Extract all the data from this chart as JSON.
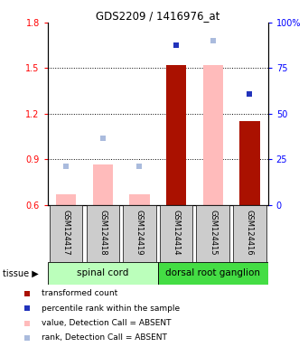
{
  "title": "GDS2209 / 1416976_at",
  "samples": [
    "GSM124417",
    "GSM124418",
    "GSM124419",
    "GSM124414",
    "GSM124415",
    "GSM124416"
  ],
  "red_bars": {
    "GSM124417": {
      "value": 0.67,
      "absent": true
    },
    "GSM124418": {
      "value": 0.865,
      "absent": true
    },
    "GSM124419": {
      "value": 0.67,
      "absent": true
    },
    "GSM124414": {
      "value": 1.52,
      "absent": false
    },
    "GSM124415": {
      "value": 1.52,
      "absent": true
    },
    "GSM124416": {
      "value": 1.15,
      "absent": false
    }
  },
  "blue_squares": {
    "GSM124417": {
      "value": 0.855,
      "absent": true
    },
    "GSM124418": {
      "value": 1.04,
      "absent": true
    },
    "GSM124419": {
      "value": 0.855,
      "absent": true
    },
    "GSM124414": {
      "value": 1.65,
      "absent": false
    },
    "GSM124415": {
      "value": 1.68,
      "absent": true
    },
    "GSM124416": {
      "value": 1.33,
      "absent": false
    }
  },
  "ylim_left": [
    0.6,
    1.8
  ],
  "ylim_right": [
    0,
    100
  ],
  "yticks_left": [
    0.6,
    0.9,
    1.2,
    1.5,
    1.8
  ],
  "yticks_right": [
    0,
    25,
    50,
    75,
    100
  ],
  "bar_width": 0.55,
  "absent_bar_color": "#ffbbbb",
  "present_bar_color": "#aa1100",
  "absent_square_color": "#aabbdd",
  "present_square_color": "#2233bb",
  "spinal_cord_color": "#bbffbb",
  "dorsal_color": "#44dd44",
  "label_box_color": "#cccccc",
  "legend_items": [
    {
      "color": "#aa1100",
      "label": "transformed count"
    },
    {
      "color": "#2233bb",
      "label": "percentile rank within the sample"
    },
    {
      "color": "#ffbbbb",
      "label": "value, Detection Call = ABSENT"
    },
    {
      "color": "#aabbdd",
      "label": "rank, Detection Call = ABSENT"
    }
  ]
}
